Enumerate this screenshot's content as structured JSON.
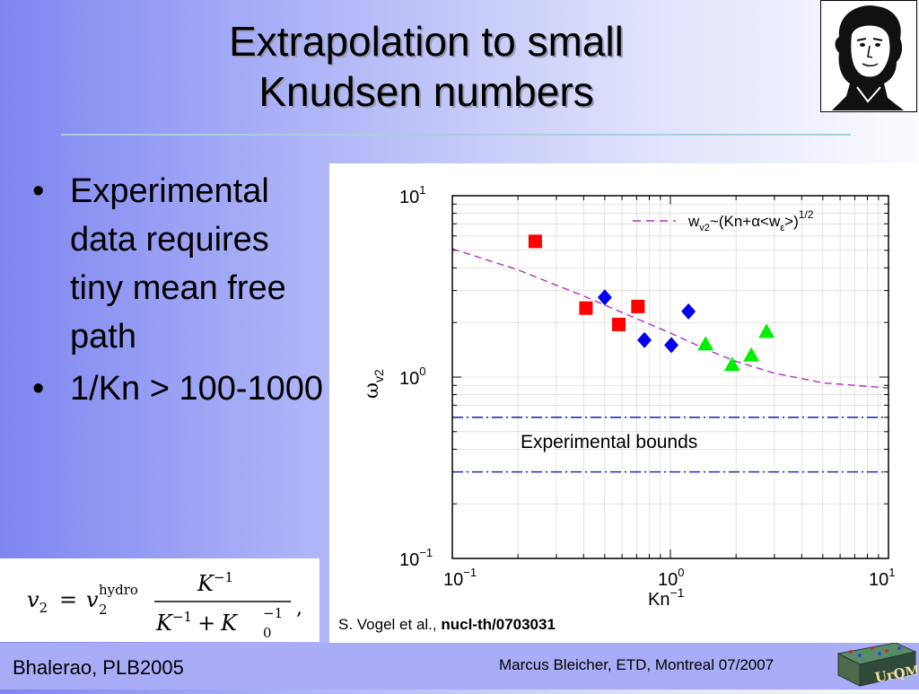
{
  "slide": {
    "title_line1": "Extrapolation to small",
    "title_line2": "Knudsen numbers",
    "bullets": [
      {
        "text": "Experimental data requires tiny mean free path"
      },
      {
        "text": "1/Kn > 100-1000"
      }
    ],
    "bullet_glyph": "•",
    "formula_tex": "v2 = v2^hydro K^-1 / (K^-1 + K0^-1)",
    "formula": {
      "lhs": "v",
      "lhs_sub": "2",
      "eq": "=",
      "rhs": "v",
      "rhs_sub": "2",
      "rhs_sup": "hydro",
      "numerator": "K",
      "num_exp": "−1",
      "den_k1": "K",
      "den_k1_exp": "−1",
      "den_plus": "+",
      "den_k0": "K",
      "den_k0_sub": "0",
      "den_k0_exp": "−1",
      "tail": ","
    },
    "citation_prefix": "S. Vogel et al., ",
    "citation_ref": "nucl-th/0703031",
    "footer_left": "Bhalerao, PLB2005",
    "footer_right": "Marcus Bleicher, ETD, Montreal 07/2007",
    "logo_text": "UrQMD",
    "portrait_icon": "portrait-engraving-icon"
  },
  "colors": {
    "red_series": "#ff0000",
    "blue_series": "#0000ee",
    "green_series": "#00ee00",
    "fit_line": "#b030c0",
    "bounds_line": "#2030b0"
  },
  "chart_data": {
    "type": "scatter",
    "x_scale": "log",
    "y_scale": "log",
    "xlim": [
      0.1,
      10
    ],
    "ylim": [
      0.1,
      10
    ],
    "xlabel": "Kn",
    "xlabel_sup": "−1",
    "ylabel": "ω",
    "ylabel_sub": "v2",
    "x_ticks": [
      {
        "value": 0.1,
        "base": "10",
        "exp": "−1"
      },
      {
        "value": 1,
        "base": "10",
        "exp": "0"
      },
      {
        "value": 10,
        "base": "10",
        "exp": "1"
      }
    ],
    "y_ticks": [
      {
        "value": 0.1,
        "base": "10",
        "exp": "−1"
      },
      {
        "value": 1,
        "base": "10",
        "exp": "0"
      },
      {
        "value": 10,
        "base": "10",
        "exp": "1"
      }
    ],
    "series": [
      {
        "marker": "square",
        "color": "#ff0000",
        "points": [
          [
            0.24,
            5.6
          ],
          [
            0.41,
            2.4
          ],
          [
            0.58,
            1.95
          ],
          [
            0.71,
            2.45
          ]
        ]
      },
      {
        "marker": "diamond",
        "color": "#0000ee",
        "points": [
          [
            0.5,
            2.75
          ],
          [
            0.76,
            1.6
          ],
          [
            1.01,
            1.5
          ],
          [
            1.21,
            2.3
          ]
        ]
      },
      {
        "marker": "triangle",
        "color": "#00ee00",
        "points": [
          [
            1.45,
            1.52
          ],
          [
            1.92,
            1.17
          ],
          [
            2.35,
            1.32
          ],
          [
            2.76,
            1.78
          ]
        ]
      }
    ],
    "fit_curve": {
      "style": "dashed",
      "label_main": "w",
      "label_sub": "v2",
      "label_mid": "~(Kn+α<w",
      "label_sub2": "ε",
      "label_end": ">)",
      "label_sup": "1/2",
      "points": [
        [
          0.1,
          5.1
        ],
        [
          0.2,
          3.9
        ],
        [
          0.4,
          2.8
        ],
        [
          0.7,
          2.1
        ],
        [
          1.0,
          1.75
        ],
        [
          1.5,
          1.4
        ],
        [
          2.0,
          1.22
        ],
        [
          3.0,
          1.05
        ],
        [
          5.0,
          0.93
        ],
        [
          10.0,
          0.87
        ]
      ]
    },
    "bounds": {
      "upper": 0.6,
      "lower": 0.3,
      "style": "dash-dot",
      "label": "Experimental bounds"
    }
  }
}
